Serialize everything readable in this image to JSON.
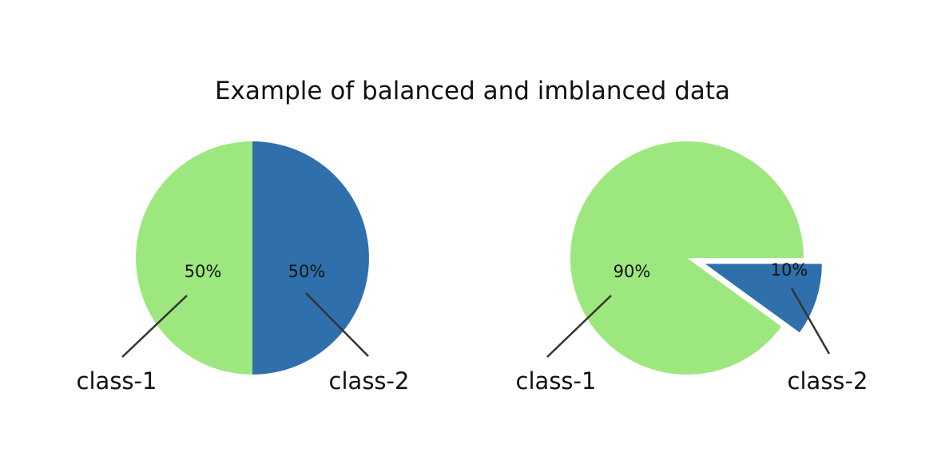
{
  "title": "Example of balanced and imblanced data",
  "colors": {
    "class_1": "#9de87e",
    "class_2": "#2f6fac"
  },
  "chart_data": [
    {
      "type": "pie",
      "title": "",
      "slices": [
        {
          "label": "class-1",
          "value": 50,
          "percent_label": "50%",
          "color": "#9de87e"
        },
        {
          "label": "class-2",
          "value": 50,
          "percent_label": "50%",
          "color": "#2f6fac"
        }
      ]
    },
    {
      "type": "pie",
      "title": "",
      "exploded": "class-2",
      "slices": [
        {
          "label": "class-1",
          "value": 90,
          "percent_label": "90%",
          "color": "#9de87e"
        },
        {
          "label": "class-2",
          "value": 10,
          "percent_label": "10%",
          "color": "#2f6fac"
        }
      ]
    }
  ]
}
